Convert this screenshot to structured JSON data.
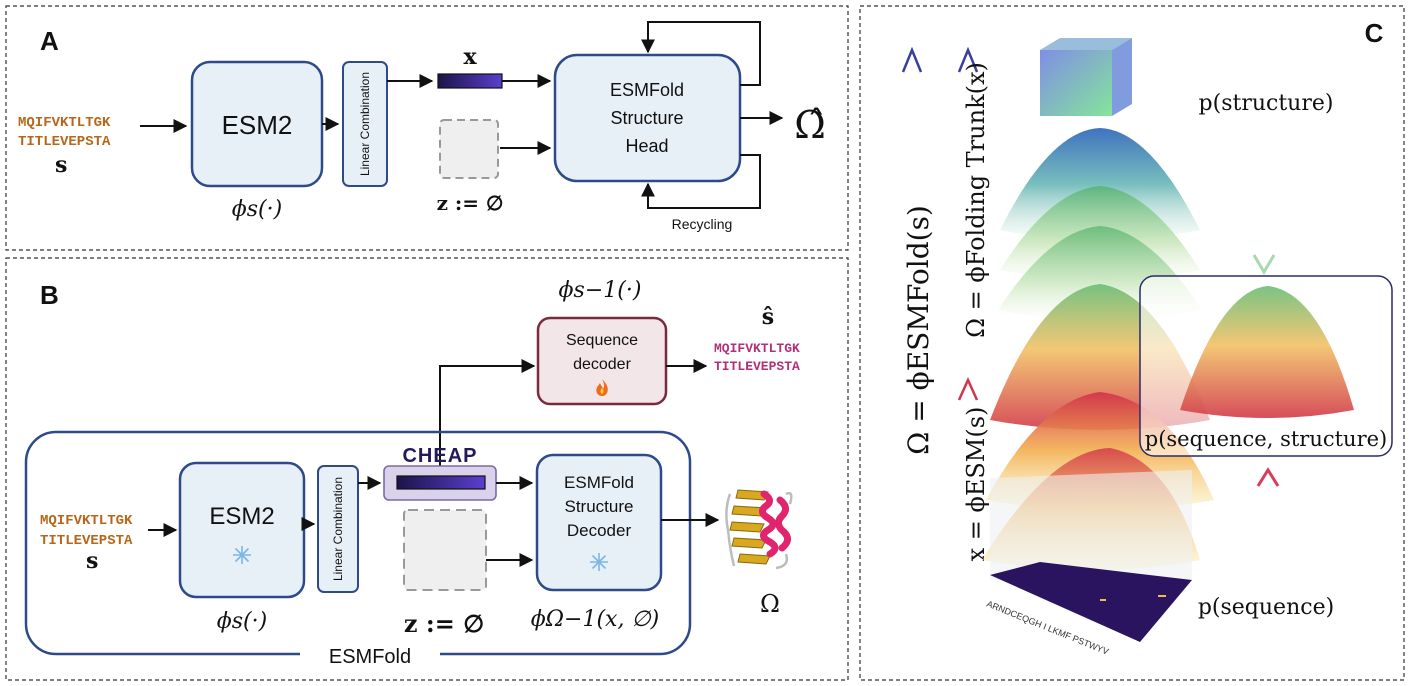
{
  "panel_a": {
    "label": "A",
    "seq_line1": "MQIFVKTLTGK",
    "seq_line2": "TITLEVEPSTA",
    "seq_symbol": "s",
    "esm2_label": "ESM2",
    "phi_s": "ϕs(·)",
    "linear_combination": "Linear Combination",
    "x_label": "x",
    "z_label": "z := ∅",
    "head_line1": "ESMFold",
    "head_line2": "Structure",
    "head_line3": "Head",
    "output": "Ω̂",
    "recycling": "Recycling"
  },
  "panel_b": {
    "label": "B",
    "phi_inv": "ϕs−1(·)",
    "decoder_line1": "Sequence",
    "decoder_line2": "decoder",
    "decoder_icon": "fire-icon",
    "s_hat": "ŝ",
    "out_seq_line1": "MQIFVKTLTGK",
    "out_seq_line2": "TITLEVEPSTA",
    "cheap": "CHEAP",
    "seq_line1": "MQIFVKTLTGK",
    "seq_line2": "TITLEVEPSTA",
    "seq_symbol": "s",
    "esm2_label": "ESM2",
    "frozen_icon": "snowflake-icon",
    "phi_s": "ϕs(·)",
    "linear_combination": "Linear Combination",
    "z_label": "z := ∅",
    "decoder2_line1": "ESMFold",
    "decoder2_line2": "Structure",
    "decoder2_line3": "Decoder",
    "phi_omega_inv": "ϕΩ−1(x, ∅)",
    "omega": "Ω",
    "esmfold_label": "ESMFold"
  },
  "panel_c": {
    "label": "C",
    "axis1": "Ω = ϕESMFold(s)",
    "axis2": "Ω = ϕFolding Trunk(x)",
    "axis3": "x = ϕESM(s)",
    "p_structure": "p(structure)",
    "p_joint": "p(sequence, structure)",
    "p_sequence": "p(sequence)",
    "aa_ticks": "ARNDCEQGH I LKMF PSTWYV"
  },
  "colors": {
    "box_fill": "#e8f0f7",
    "box_stroke": "#2e4a8a",
    "seq_orange": "#b7671a",
    "seq_magenta": "#b0307a",
    "decoder_fill": "#f2e6e8",
    "decoder_stroke": "#7a2a3f",
    "cheap_navy": "#221a5a"
  }
}
